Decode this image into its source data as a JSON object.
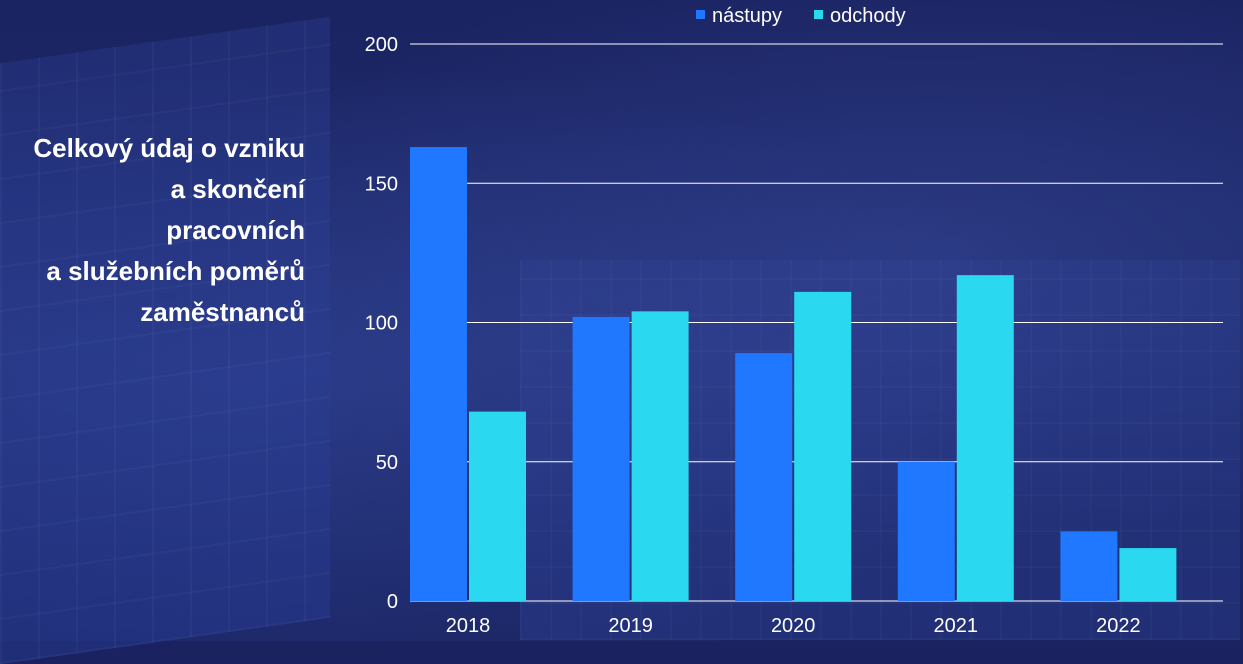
{
  "title": "Celkový údaj o vzniku\na skončení\npracovních\na služebních poměrů\nzaměstnanců",
  "colors": {
    "nastupy": "#1f78ff",
    "odchody": "#2ad8f0",
    "background": "#1a2360",
    "text": "#ffffff"
  },
  "chart_data": {
    "type": "bar",
    "categories": [
      "2018",
      "2019",
      "2020",
      "2021",
      "2022"
    ],
    "series": [
      {
        "name": "nástupy",
        "values": [
          163,
          102,
          89,
          50,
          25
        ]
      },
      {
        "name": "odchody",
        "values": [
          68,
          104,
          111,
          117,
          19
        ]
      }
    ],
    "yticks": [
      "0",
      "50",
      "100",
      "150",
      "200"
    ],
    "ylim": [
      0,
      200
    ],
    "grid": true,
    "legend": "top"
  }
}
